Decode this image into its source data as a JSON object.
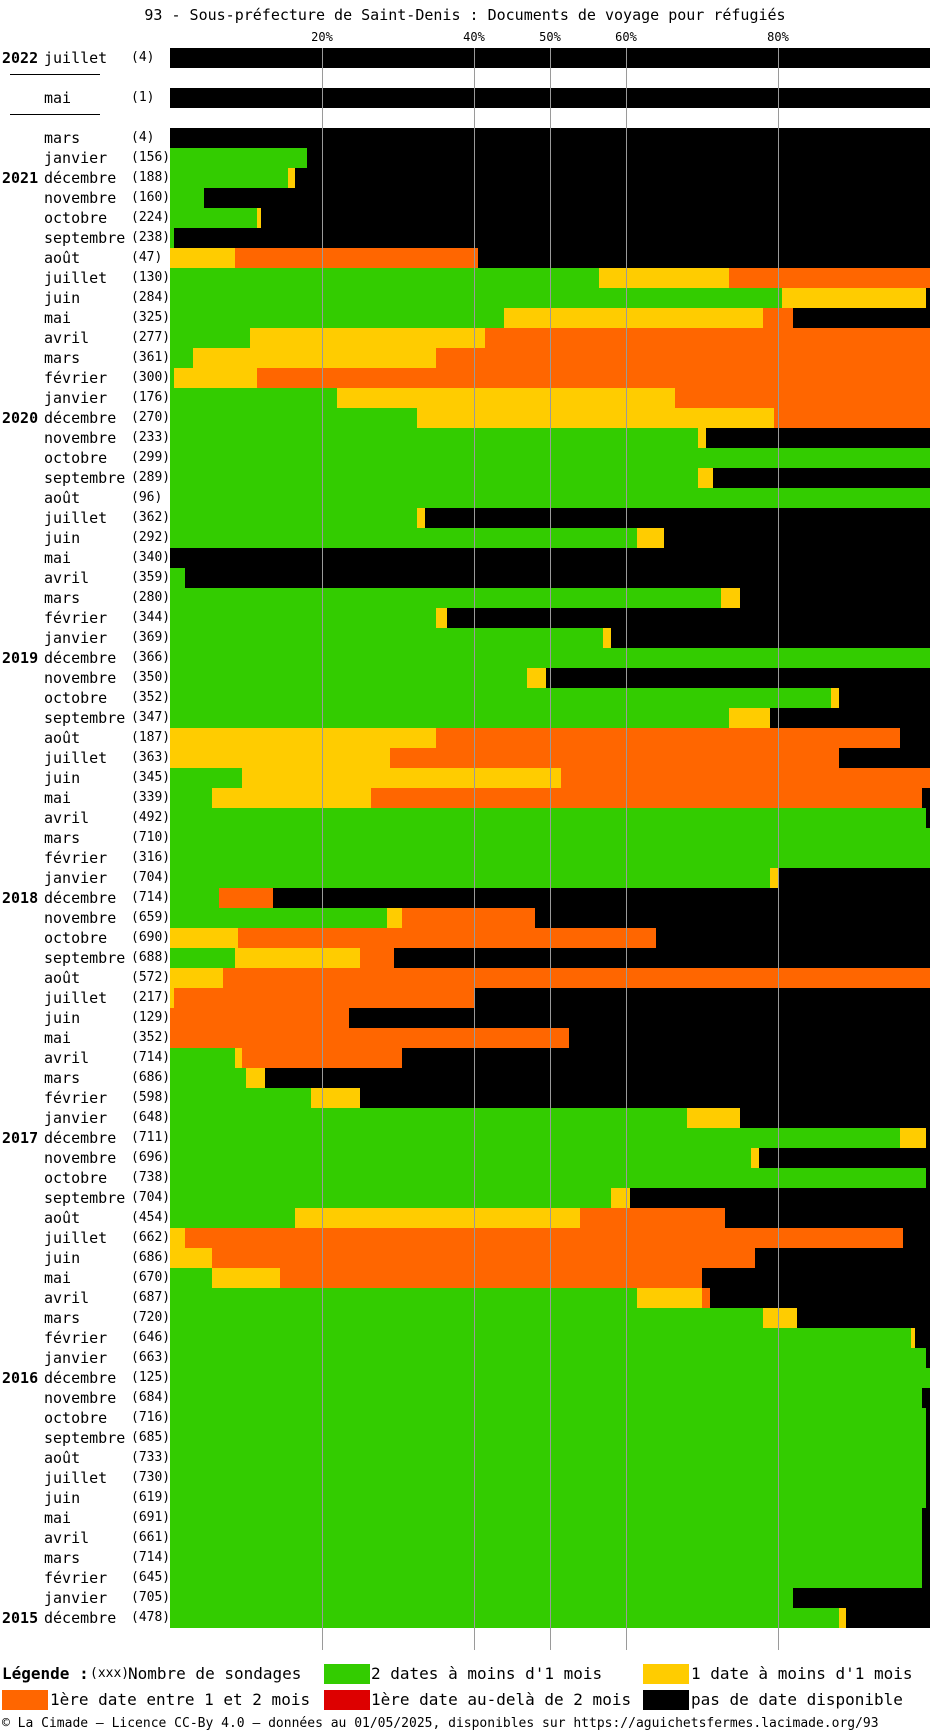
{
  "title": "93 - Sous-préfecture de Saint-Denis : Documents de voyage pour réfugiés",
  "colors": {
    "green": "#33cc00",
    "yellow": "#ffcc00",
    "orange": "#ff6600",
    "red": "#dd0000",
    "black": "#000000"
  },
  "chart_data": {
    "type": "bar",
    "stacked": true,
    "orientation": "horizontal",
    "x_ticks": [
      "20%",
      "40%",
      "50%",
      "60%",
      "80%"
    ],
    "grid": true,
    "series_keys": [
      "green",
      "yellow",
      "orange",
      "red",
      "black"
    ],
    "rows": [
      {
        "year": "2022",
        "month": "juillet",
        "count": "(4)",
        "values": [
          0,
          0,
          0,
          0,
          100
        ],
        "sep": true
      },
      {
        "year": "",
        "month": "mai",
        "count": "(1)",
        "values": [
          0,
          0,
          0,
          0,
          100
        ],
        "sep": true
      },
      {
        "year": "",
        "month": "mars",
        "count": "(4)",
        "values": [
          0,
          0,
          0,
          0,
          100
        ]
      },
      {
        "year": "",
        "month": "janvier",
        "count": "(156)",
        "values": [
          18,
          0,
          0,
          0,
          82
        ]
      },
      {
        "year": "2021",
        "month": "décembre",
        "count": "(188)",
        "values": [
          15.5,
          1,
          0,
          0,
          83.5
        ]
      },
      {
        "year": "",
        "month": "novembre",
        "count": "(160)",
        "values": [
          4.5,
          0,
          0,
          0,
          95.5
        ]
      },
      {
        "year": "",
        "month": "octobre",
        "count": "(224)",
        "values": [
          11.5,
          0.5,
          0,
          0,
          88
        ]
      },
      {
        "year": "",
        "month": "septembre",
        "count": "(238)",
        "values": [
          0.5,
          0,
          0,
          0,
          99.5
        ]
      },
      {
        "year": "",
        "month": "août",
        "count": "(47)",
        "values": [
          0,
          8.5,
          32,
          0,
          59.5
        ]
      },
      {
        "year": "",
        "month": "juillet",
        "count": "(130)",
        "values": [
          56.5,
          17,
          26.5,
          0,
          0
        ]
      },
      {
        "year": "",
        "month": "juin",
        "count": "(284)",
        "values": [
          80.5,
          19,
          0,
          0,
          0.5
        ]
      },
      {
        "year": "",
        "month": "mai",
        "count": "(325)",
        "values": [
          44,
          34,
          4,
          0,
          18
        ]
      },
      {
        "year": "",
        "month": "avril",
        "count": "(277)",
        "values": [
          10.5,
          31,
          58.5,
          0,
          0
        ]
      },
      {
        "year": "",
        "month": "mars",
        "count": "(361)",
        "values": [
          3,
          32,
          65,
          0,
          0
        ]
      },
      {
        "year": "",
        "month": "février",
        "count": "(300)",
        "values": [
          0.5,
          11,
          88.5,
          0,
          0
        ]
      },
      {
        "year": "",
        "month": "janvier",
        "count": "(176)",
        "values": [
          22,
          44.5,
          33.5,
          0,
          0
        ]
      },
      {
        "year": "2020",
        "month": "décembre",
        "count": "(270)",
        "values": [
          32.5,
          47,
          20.5,
          0,
          0
        ]
      },
      {
        "year": "",
        "month": "novembre",
        "count": "(233)",
        "values": [
          69.5,
          1,
          0,
          0,
          29.5
        ]
      },
      {
        "year": "",
        "month": "octobre",
        "count": "(299)",
        "values": [
          100,
          0,
          0,
          0,
          0
        ]
      },
      {
        "year": "",
        "month": "septembre",
        "count": "(289)",
        "values": [
          69.5,
          2,
          0,
          0,
          28.5
        ]
      },
      {
        "year": "",
        "month": "août",
        "count": "(96)",
        "values": [
          100,
          0,
          0,
          0,
          0
        ]
      },
      {
        "year": "",
        "month": "juillet",
        "count": "(362)",
        "values": [
          32.5,
          1,
          0,
          0,
          66.5
        ]
      },
      {
        "year": "",
        "month": "juin",
        "count": "(292)",
        "values": [
          61.5,
          3.5,
          0,
          0,
          35
        ]
      },
      {
        "year": "",
        "month": "mai",
        "count": "(340)",
        "values": [
          0,
          0,
          0,
          0,
          100
        ]
      },
      {
        "year": "",
        "month": "avril",
        "count": "(359)",
        "values": [
          2,
          0,
          0,
          0,
          98
        ]
      },
      {
        "year": "",
        "month": "mars",
        "count": "(280)",
        "values": [
          72.5,
          2.5,
          0,
          0,
          25
        ]
      },
      {
        "year": "",
        "month": "février",
        "count": "(344)",
        "values": [
          35,
          1.5,
          0,
          0,
          63.5
        ]
      },
      {
        "year": "",
        "month": "janvier",
        "count": "(369)",
        "values": [
          57,
          1,
          0,
          0,
          42
        ]
      },
      {
        "year": "2019",
        "month": "décembre",
        "count": "(366)",
        "values": [
          100,
          0,
          0,
          0,
          0
        ]
      },
      {
        "year": "",
        "month": "novembre",
        "count": "(350)",
        "values": [
          47,
          2.5,
          0,
          0,
          50.5
        ]
      },
      {
        "year": "",
        "month": "octobre",
        "count": "(352)",
        "values": [
          87,
          1,
          0,
          0,
          12
        ]
      },
      {
        "year": "",
        "month": "septembre",
        "count": "(347)",
        "values": [
          73.5,
          5.5,
          0,
          0,
          21
        ]
      },
      {
        "year": "",
        "month": "août",
        "count": "(187)",
        "values": [
          0,
          35,
          61,
          0,
          4
        ]
      },
      {
        "year": "",
        "month": "juillet",
        "count": "(363)",
        "values": [
          0,
          29,
          59,
          0,
          12
        ]
      },
      {
        "year": "",
        "month": "juin",
        "count": "(345)",
        "values": [
          9.5,
          42,
          48.5,
          0,
          0
        ]
      },
      {
        "year": "",
        "month": "mai",
        "count": "(339)",
        "values": [
          5.5,
          21,
          72.5,
          0,
          1
        ]
      },
      {
        "year": "",
        "month": "avril",
        "count": "(492)",
        "values": [
          99.5,
          0,
          0,
          0,
          0.5
        ]
      },
      {
        "year": "",
        "month": "mars",
        "count": "(710)",
        "values": [
          100,
          0,
          0,
          0,
          0
        ]
      },
      {
        "year": "",
        "month": "février",
        "count": "(316)",
        "values": [
          100,
          0,
          0,
          0,
          0
        ]
      },
      {
        "year": "",
        "month": "janvier",
        "count": "(704)",
        "values": [
          79,
          1,
          0,
          0,
          20
        ]
      },
      {
        "year": "2018",
        "month": "décembre",
        "count": "(714)",
        "values": [
          6.5,
          0,
          7,
          0,
          86.5
        ]
      },
      {
        "year": "",
        "month": "novembre",
        "count": "(659)",
        "values": [
          28.5,
          2,
          17.5,
          0,
          52
        ]
      },
      {
        "year": "",
        "month": "octobre",
        "count": "(690)",
        "values": [
          0,
          9,
          55,
          0,
          36
        ]
      },
      {
        "year": "",
        "month": "septembre",
        "count": "(688)",
        "values": [
          8.5,
          16.5,
          4.5,
          0,
          70.5
        ]
      },
      {
        "year": "",
        "month": "août",
        "count": "(572)",
        "values": [
          0,
          7,
          93,
          0,
          0
        ]
      },
      {
        "year": "",
        "month": "juillet",
        "count": "(217)",
        "values": [
          0,
          0.5,
          39.5,
          0,
          60
        ]
      },
      {
        "year": "",
        "month": "juin",
        "count": "(129)",
        "values": [
          0,
          0,
          23.5,
          0,
          76.5
        ]
      },
      {
        "year": "",
        "month": "mai",
        "count": "(352)",
        "values": [
          0,
          0,
          52.5,
          0,
          47.5
        ]
      },
      {
        "year": "",
        "month": "avril",
        "count": "(714)",
        "values": [
          8.5,
          1,
          21,
          0,
          69.5
        ]
      },
      {
        "year": "",
        "month": "mars",
        "count": "(686)",
        "values": [
          10,
          2.5,
          0,
          0,
          87.5
        ]
      },
      {
        "year": "",
        "month": "février",
        "count": "(598)",
        "values": [
          18.5,
          6.5,
          0,
          0,
          75
        ]
      },
      {
        "year": "",
        "month": "janvier",
        "count": "(648)",
        "values": [
          68,
          7,
          0,
          0,
          25
        ]
      },
      {
        "year": "2017",
        "month": "décembre",
        "count": "(711)",
        "values": [
          96,
          3.5,
          0,
          0,
          0.5
        ]
      },
      {
        "year": "",
        "month": "novembre",
        "count": "(696)",
        "values": [
          76.5,
          1,
          0,
          0,
          22.5
        ]
      },
      {
        "year": "",
        "month": "octobre",
        "count": "(738)",
        "values": [
          99.5,
          0,
          0,
          0,
          0.5
        ]
      },
      {
        "year": "",
        "month": "septembre",
        "count": "(704)",
        "values": [
          58,
          2.5,
          0,
          0,
          39.5
        ]
      },
      {
        "year": "",
        "month": "août",
        "count": "(454)",
        "values": [
          16.5,
          37.5,
          19,
          0,
          27
        ]
      },
      {
        "year": "",
        "month": "juillet",
        "count": "(662)",
        "values": [
          0,
          2,
          94.5,
          0,
          3.5
        ]
      },
      {
        "year": "",
        "month": "juin",
        "count": "(686)",
        "values": [
          0,
          5.5,
          71.5,
          0,
          23
        ]
      },
      {
        "year": "",
        "month": "mai",
        "count": "(670)",
        "values": [
          5.5,
          9,
          55.5,
          0,
          30
        ]
      },
      {
        "year": "",
        "month": "avril",
        "count": "(687)",
        "values": [
          61.5,
          8.5,
          1,
          0,
          29
        ]
      },
      {
        "year": "",
        "month": "mars",
        "count": "(720)",
        "values": [
          78,
          4.5,
          0,
          0,
          17.5
        ]
      },
      {
        "year": "",
        "month": "février",
        "count": "(646)",
        "values": [
          97.5,
          0.5,
          0,
          0,
          2
        ]
      },
      {
        "year": "",
        "month": "janvier",
        "count": "(663)",
        "values": [
          99.5,
          0,
          0,
          0,
          0.5
        ]
      },
      {
        "year": "2016",
        "month": "décembre",
        "count": "(125)",
        "values": [
          100,
          0,
          0,
          0,
          0
        ]
      },
      {
        "year": "",
        "month": "novembre",
        "count": "(684)",
        "values": [
          99,
          0,
          0,
          0,
          1
        ]
      },
      {
        "year": "",
        "month": "octobre",
        "count": "(716)",
        "values": [
          99.5,
          0,
          0,
          0,
          0.5
        ]
      },
      {
        "year": "",
        "month": "septembre",
        "count": "(685)",
        "values": [
          99.5,
          0,
          0,
          0,
          0.5
        ]
      },
      {
        "year": "",
        "month": "août",
        "count": "(733)",
        "values": [
          99.5,
          0,
          0,
          0,
          0.5
        ]
      },
      {
        "year": "",
        "month": "juillet",
        "count": "(730)",
        "values": [
          99.5,
          0,
          0,
          0,
          0.5
        ]
      },
      {
        "year": "",
        "month": "juin",
        "count": "(619)",
        "values": [
          99.5,
          0,
          0,
          0,
          0.5
        ]
      },
      {
        "year": "",
        "month": "mai",
        "count": "(691)",
        "values": [
          99,
          0,
          0,
          0,
          1
        ]
      },
      {
        "year": "",
        "month": "avril",
        "count": "(661)",
        "values": [
          99,
          0,
          0,
          0,
          1
        ]
      },
      {
        "year": "",
        "month": "mars",
        "count": "(714)",
        "values": [
          99,
          0,
          0,
          0,
          1
        ]
      },
      {
        "year": "",
        "month": "février",
        "count": "(645)",
        "values": [
          99,
          0,
          0,
          0,
          1
        ]
      },
      {
        "year": "",
        "month": "janvier",
        "count": "(705)",
        "values": [
          82,
          0,
          0,
          0,
          18
        ]
      },
      {
        "year": "2015",
        "month": "décembre",
        "count": "(478)",
        "values": [
          88,
          1,
          0,
          0,
          11
        ]
      }
    ]
  },
  "legend": {
    "title": "Légende :",
    "count_key": "(xxx)",
    "count_label": "Nombre de sondages",
    "green_label": "2 dates à moins d'1 mois",
    "yellow_label": "1 date à moins d'1 mois",
    "orange_label": "1ère date entre 1 et 2 mois",
    "red_label": "1ère date au-delà de 2 mois",
    "black_label": "pas de date disponible"
  },
  "footer": "© La Cimade — Licence CC-By 4.0 — données au 01/05/2025, disponibles sur https://aguichetsfermes.lacimade.org/93"
}
